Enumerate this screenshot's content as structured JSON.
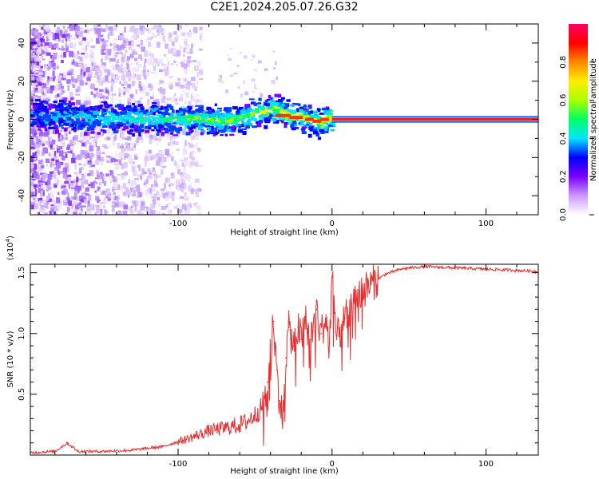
{
  "title": "C2E1.2024.205.07.26.G32",
  "chart_data": [
    {
      "type": "heatmap",
      "title": "C2E1.2024.205.07.26.G32",
      "xlabel": "Height of straight line (km)",
      "ylabel": "Frequency (Hz)",
      "xlim": [
        -196,
        134
      ],
      "ylim": [
        -50,
        50
      ],
      "xticks": [
        -100,
        0,
        100
      ],
      "xtick_labels": [
        "-100",
        "0",
        "100"
      ],
      "yticks": [
        -40,
        -20,
        0,
        20,
        40
      ],
      "ytick_labels": [
        "-40",
        "-20",
        "0",
        "20",
        "40"
      ],
      "ridge": {
        "description": "dominant spectral ridge (frequency in Hz vs height in km)",
        "x": [
          -196,
          -160,
          -120,
          -90,
          -70,
          -55,
          -45,
          -38,
          -30,
          -20,
          -12,
          -8,
          -4,
          0,
          20,
          60,
          100,
          134
        ],
        "y": [
          2,
          1,
          0,
          0,
          -1,
          2,
          4,
          6,
          2,
          1,
          -1,
          -2,
          0,
          1,
          0,
          0,
          0,
          0
        ]
      },
      "colorbar": {
        "label": "Normalized spectral amplitude",
        "range": [
          0,
          1
        ],
        "ticks": [
          0.0,
          0.2,
          0.4,
          0.6,
          0.8
        ],
        "tick_labels": [
          "0.0",
          "0.2",
          "0.4",
          "0.6",
          "0.8"
        ],
        "colormap": [
          "#ffffff",
          "#cc99ff",
          "#7a00ff",
          "#0000ff",
          "#00e5ff",
          "#00ff66",
          "#aaff00",
          "#ffee00",
          "#ff8800",
          "#ff0000",
          "#ff0066"
        ]
      }
    },
    {
      "type": "line",
      "xlabel": "Height of straight line (km)",
      "ylabel": "SNR (10 * v/v)",
      "scale_label_base": "(x10",
      "scale_label_exp": "4",
      "scale_label_end": ")",
      "xlim": [
        -196,
        134
      ],
      "ylim": [
        0,
        1.57
      ],
      "xticks": [
        -100,
        0,
        100
      ],
      "xtick_labels": [
        "-100",
        "0",
        "100"
      ],
      "yticks": [
        0.5,
        1.0,
        1.5
      ],
      "ytick_labels": [
        "0.5",
        "1.0",
        "1.5"
      ],
      "series": [
        {
          "name": "SNR",
          "color": "#e83030",
          "x": [
            -196,
            -180,
            -172,
            -165,
            -150,
            -130,
            -110,
            -90,
            -80,
            -70,
            -60,
            -55,
            -50,
            -45,
            -42,
            -40,
            -38,
            -36,
            -34,
            -32,
            -30,
            -28,
            -25,
            -22,
            -20,
            -17,
            -14,
            -10,
            -7,
            -4,
            -2,
            0,
            3,
            6,
            10,
            15,
            20,
            25,
            30,
            35,
            40,
            45,
            50,
            60,
            80,
            100,
            120,
            134
          ],
          "y": [
            0.02,
            0.03,
            0.1,
            0.03,
            0.03,
            0.04,
            0.07,
            0.15,
            0.2,
            0.22,
            0.25,
            0.28,
            0.33,
            0.4,
            0.6,
            0.9,
            1.1,
            0.7,
            0.45,
            0.3,
            0.8,
            1.05,
            0.9,
            1.05,
            0.95,
            1.1,
            0.95,
            1.2,
            1.0,
            1.15,
            0.85,
            1.47,
            0.95,
            1.05,
            1.15,
            1.25,
            1.35,
            1.4,
            1.45,
            1.49,
            1.51,
            1.53,
            1.54,
            1.55,
            1.54,
            1.53,
            1.52,
            1.51
          ]
        }
      ]
    }
  ]
}
